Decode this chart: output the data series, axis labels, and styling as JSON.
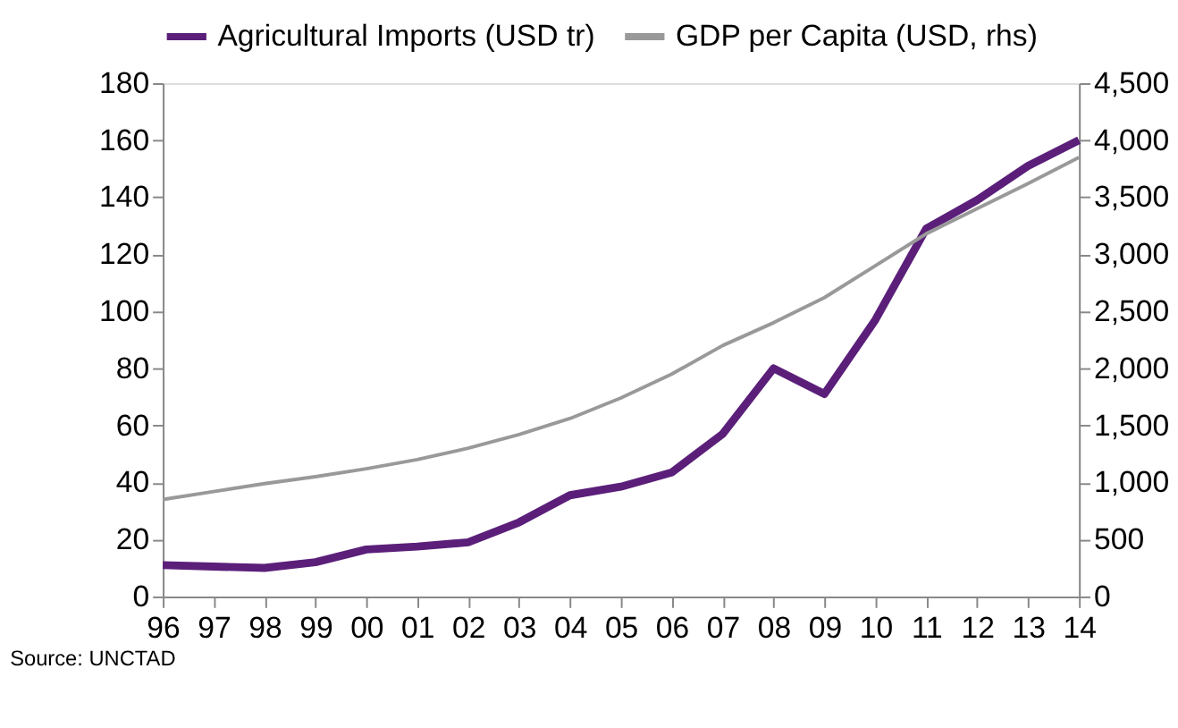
{
  "chart_data": {
    "type": "line",
    "categories": [
      "96",
      "97",
      "98",
      "99",
      "00",
      "01",
      "02",
      "03",
      "04",
      "05",
      "06",
      "07",
      "08",
      "09",
      "10",
      "11",
      "12",
      "13",
      "14"
    ],
    "series": [
      {
        "name": "Agricultural Imports (USD tr)",
        "color": "#5b1f7a",
        "values": [
          11,
          10.5,
          10,
          12,
          16.5,
          17.5,
          19,
          26,
          35.5,
          38.5,
          43.5,
          57,
          80,
          71,
          97,
          129,
          139,
          151,
          160
        ]
      },
      {
        "name": "GDP per Capita (USD, rhs)",
        "color": "#999999",
        "axis": "y2",
        "values": [
          850,
          920,
          990,
          1050,
          1120,
          1200,
          1300,
          1420,
          1560,
          1740,
          1950,
          2200,
          2400,
          2620,
          2900,
          3180,
          3400,
          3620,
          3850
        ]
      }
    ],
    "ylim": [
      0,
      180
    ],
    "yticks": [
      0,
      20,
      40,
      60,
      80,
      100,
      120,
      140,
      160,
      180
    ],
    "y2lim": [
      0,
      4500
    ],
    "y2ticks": [
      0,
      {
        "value": 500,
        "label": "500"
      },
      {
        "value": 1000,
        "label": "1,000"
      },
      {
        "value": 1500,
        "label": "1,500"
      },
      {
        "value": 2000,
        "label": "2,000"
      },
      {
        "value": 2500,
        "label": "2,500"
      },
      {
        "value": 3000,
        "label": "3,000"
      },
      {
        "value": 3500,
        "label": "3,500"
      },
      {
        "value": 4000,
        "label": "4,000"
      },
      {
        "value": 4500,
        "label": "4,500"
      }
    ],
    "legend": "top",
    "grid": false,
    "annotations": [
      "Source: UNCTAD"
    ]
  }
}
